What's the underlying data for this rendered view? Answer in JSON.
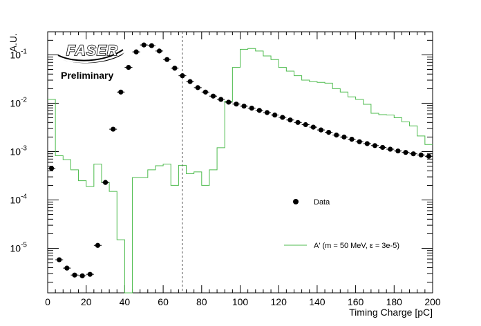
{
  "chart_data": {
    "type": "scatter",
    "title": "",
    "xlabel": "Timing Charge [pC]",
    "ylabel": "A.U.",
    "xlim": [
      0,
      200
    ],
    "ylim": [
      1.2e-06,
      0.3
    ],
    "yscale": "log",
    "grid": false,
    "legend_placement": "bottom-right",
    "x_ticks": [
      "0",
      "20",
      "40",
      "60",
      "80",
      "100",
      "120",
      "140",
      "160",
      "180",
      "200"
    ],
    "y_ticks": [
      {
        "base": "10",
        "exp": "-1"
      },
      {
        "base": "10",
        "exp": "-2"
      },
      {
        "base": "10",
        "exp": "-3"
      },
      {
        "base": "10",
        "exp": "-4"
      },
      {
        "base": "10",
        "exp": "-5"
      }
    ],
    "cut_line_x": 70,
    "logo_text": "FASER",
    "annotation": "Preliminary",
    "series": [
      {
        "name": "Data",
        "style": "markers",
        "color": "#000000",
        "x": [
          2,
          6,
          10,
          14,
          18,
          22,
          26,
          30,
          34,
          38,
          42,
          46,
          50,
          54,
          58,
          62,
          66,
          70,
          74,
          78,
          82,
          86,
          90,
          94,
          98,
          102,
          106,
          110,
          114,
          118,
          122,
          126,
          130,
          134,
          138,
          142,
          146,
          150,
          154,
          158,
          162,
          166,
          170,
          174,
          178,
          182,
          186,
          190,
          194,
          198
        ],
        "y": [
          0.00045,
          5.8e-06,
          3.9e-06,
          2.8e-06,
          2.7e-06,
          2.9e-06,
          1.15e-05,
          0.00023,
          0.0029,
          0.017,
          0.055,
          0.115,
          0.16,
          0.155,
          0.12,
          0.08,
          0.053,
          0.037,
          0.028,
          0.021,
          0.017,
          0.014,
          0.012,
          0.0105,
          0.0096,
          0.0087,
          0.0079,
          0.0071,
          0.0064,
          0.0057,
          0.0051,
          0.0045,
          0.004,
          0.0036,
          0.0032,
          0.0028,
          0.0025,
          0.0022,
          0.002,
          0.0018,
          0.0016,
          0.00146,
          0.00133,
          0.00122,
          0.00112,
          0.00103,
          0.00096,
          0.0009,
          0.00085,
          0.0008
        ]
      },
      {
        "name": "A' (m = 50 MeV, ε = 3e-5)",
        "style": "step",
        "color": "#4cbb4c",
        "bin_edges": [
          0,
          4,
          8,
          12,
          16,
          20,
          24,
          28,
          32,
          36,
          40,
          44,
          48,
          52,
          56,
          60,
          64,
          68,
          72,
          76,
          80,
          84,
          88,
          92,
          96,
          100,
          104,
          108,
          112,
          116,
          120,
          124,
          128,
          132,
          136,
          140,
          144,
          148,
          152,
          156,
          160,
          164,
          168,
          172,
          176,
          180,
          184,
          188,
          192,
          196,
          200
        ],
        "values": [
          0.012,
          0.00082,
          0.00068,
          0.00042,
          0.00025,
          0.00019,
          0.00055,
          0.00023,
          0.00015,
          1.5e-05,
          1e-07,
          0.00029,
          0.00029,
          0.00042,
          0.00051,
          0.00055,
          0.0002,
          0.00052,
          0.00035,
          0.00038,
          0.0002,
          0.00042,
          0.0012,
          0.011,
          0.055,
          0.13,
          0.135,
          0.12,
          0.095,
          0.08,
          0.055,
          0.046,
          0.037,
          0.03,
          0.028,
          0.027,
          0.026,
          0.02,
          0.017,
          0.0135,
          0.012,
          0.0095,
          0.0062,
          0.0058,
          0.0057,
          0.005,
          0.0041,
          0.0034,
          0.0021,
          0.0014
        ]
      }
    ]
  }
}
